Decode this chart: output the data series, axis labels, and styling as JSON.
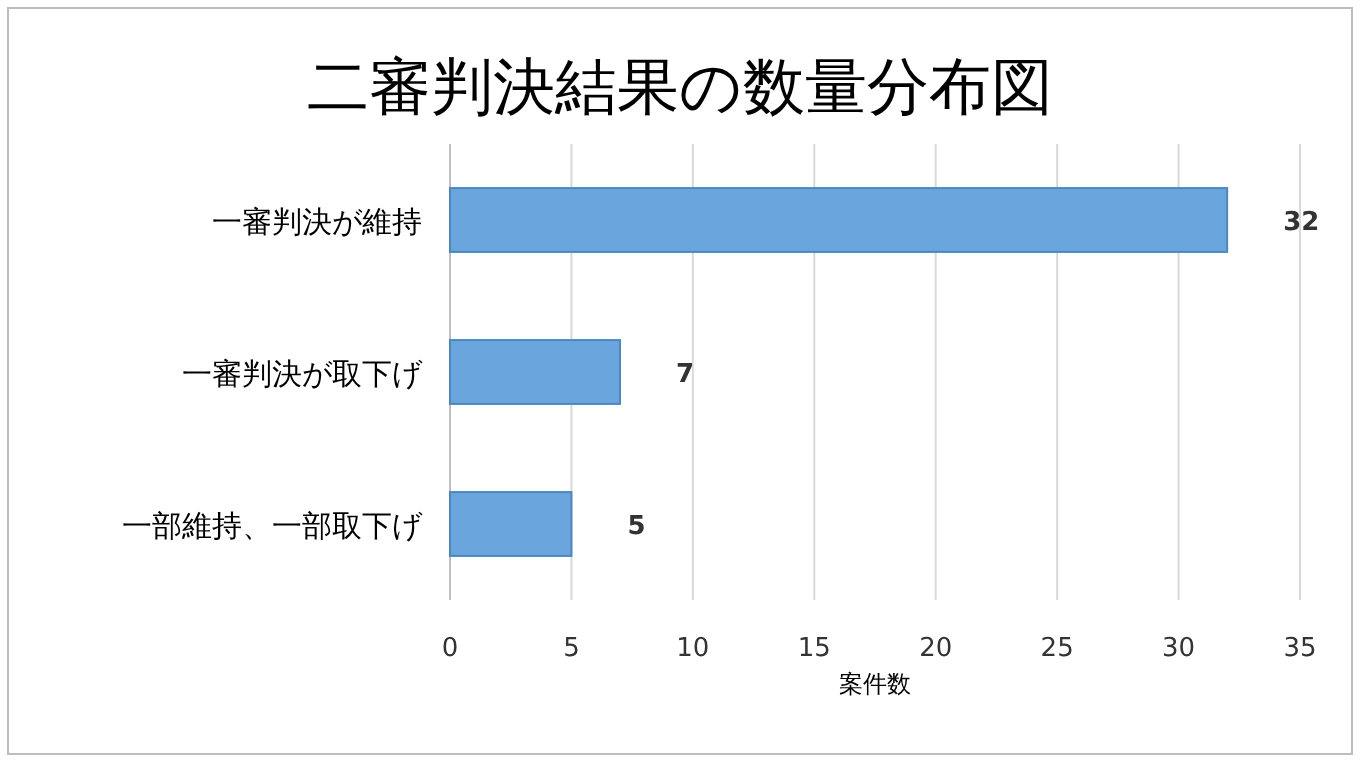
{
  "chart_data": {
    "type": "bar",
    "orientation": "horizontal",
    "title": "二審判決結果の数量分布図",
    "xlabel": "案件数",
    "categories": [
      "一審判決が維持",
      "一審判決が取下げ",
      "一部維持、一部取下げ"
    ],
    "values": [
      32,
      7,
      5
    ],
    "color": "#6aa6dd",
    "xlim": [
      0,
      35
    ],
    "xticks": [
      0,
      5,
      10,
      15,
      20,
      25,
      30,
      35
    ],
    "grid": "x",
    "data_labels": true
  }
}
